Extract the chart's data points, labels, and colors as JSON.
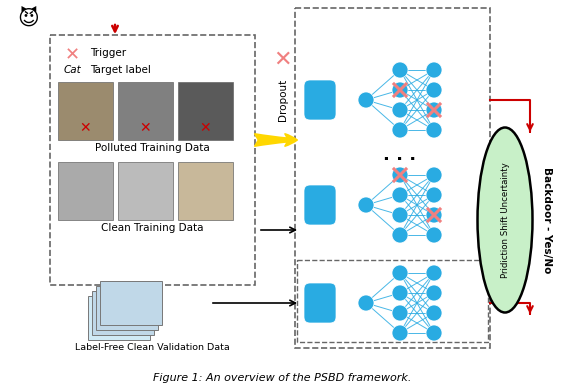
{
  "bg_color": "#ffffff",
  "nn_node_color": "#29ABE2",
  "nn_edge_color": "#29ABE2",
  "x_color": "#F08080",
  "arrow_red": "#CC0000",
  "arrow_yellow": "#FFD700",
  "arrow_black": "#000000",
  "box_dashed_color": "#666666",
  "ellipse_color": "#c8f0c8",
  "ellipse_text": "Pridiction Shift Uncertainty",
  "backdoor_text": "Backdoor - Yes/No",
  "dropout_text": "Dropout",
  "polluted_text": "Polluted Training Data",
  "clean_text": "Clean Training Data",
  "validation_text": "Label-Free Clean Validation Data",
  "caption": "Figure 1: An overview of the PSBD framework.",
  "trigger_text": "Trigger",
  "target_label_text": "Cat    Target label"
}
